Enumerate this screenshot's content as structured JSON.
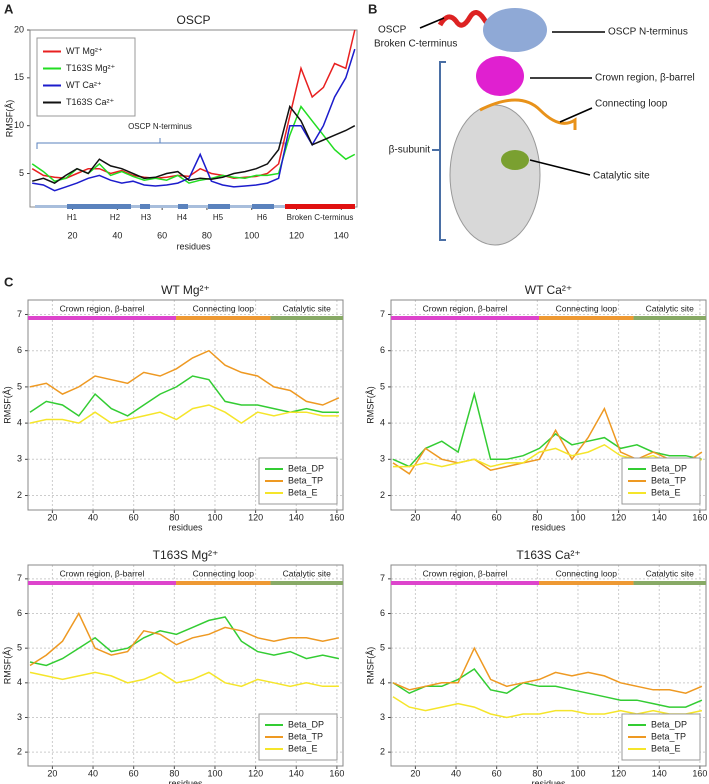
{
  "panel_labels": [
    "A",
    "B",
    "C"
  ],
  "diagram": {
    "broken_c_terminus": [
      "OSCP",
      "Broken C-terminus"
    ],
    "n_terminus": "OSCP N-terminus",
    "crown": "Crown region, β-barrel",
    "loop": "Connecting loop",
    "catalytic": "Catalytic site",
    "beta_subunit": "β-subunit"
  },
  "chart_data": [
    {
      "type": "line",
      "title": "OSCP",
      "x_label": "residues",
      "y_label": "RMSF(Å)",
      "grid": false,
      "legend": "top-left",
      "annotations": {
        "bracket": "OSCP N-terminus",
        "helices": [
          "H1",
          "H2",
          "H3",
          "H4",
          "H5",
          "H6"
        ],
        "tail": "Broken C-terminus"
      },
      "x": [
        2,
        7,
        12,
        17,
        22,
        27,
        32,
        37,
        42,
        47,
        52,
        57,
        62,
        67,
        72,
        77,
        82,
        87,
        92,
        97,
        102,
        107,
        112,
        117,
        122,
        127,
        132,
        137,
        142,
        146
      ],
      "xlim": [
        1,
        147
      ],
      "xticks": [
        20,
        40,
        60,
        80,
        100,
        120,
        140
      ],
      "ylim": [
        1.5,
        20
      ],
      "yticks": [
        5,
        10,
        15,
        20
      ],
      "series": [
        {
          "name": "WT Mg²⁺",
          "color": "#e82020",
          "values": [
            5.5,
            4.8,
            4.6,
            4.5,
            5,
            5.5,
            5.5,
            5,
            5.3,
            4.8,
            4.6,
            4.5,
            4.6,
            4.8,
            4.7,
            5.5,
            5,
            4.8,
            4.5,
            4.6,
            4.7,
            5,
            6,
            11,
            16,
            13,
            14,
            16.5,
            16,
            20
          ]
        },
        {
          "name": "T163S Mg²⁺",
          "color": "#22dd22",
          "values": [
            6,
            5.2,
            4.2,
            4.5,
            5.5,
            5,
            6,
            4.8,
            5.2,
            4.7,
            4.3,
            4.5,
            4.3,
            4.8,
            4,
            4.3,
            4.5,
            4.8,
            4.6,
            4.5,
            4.8,
            4.8,
            5,
            9,
            12,
            10.5,
            9,
            7.5,
            6.5,
            7
          ]
        },
        {
          "name": "WT Ca²⁺",
          "color": "#1c1ccc",
          "values": [
            4,
            3.8,
            3.2,
            3.6,
            4,
            4.5,
            4.8,
            4.3,
            4,
            4.2,
            3.8,
            3.7,
            3.8,
            4,
            4.5,
            7,
            4.2,
            3.8,
            3.6,
            3.7,
            3.8,
            4,
            4.5,
            10,
            10,
            8,
            10,
            13,
            15,
            18
          ]
        },
        {
          "name": "T163S Ca²⁺",
          "color": "#111111",
          "values": [
            4.2,
            4.5,
            4,
            4.8,
            5.5,
            5,
            6.5,
            5.8,
            5.5,
            5,
            4.5,
            4.6,
            5,
            5.2,
            4.3,
            4.5,
            4.4,
            4.6,
            5,
            5.2,
            5.5,
            6,
            7.5,
            12,
            10.5,
            8,
            8.5,
            9,
            9.5,
            10
          ]
        }
      ]
    },
    {
      "type": "line",
      "title": "WT Mg²⁺",
      "x_label": "residues",
      "y_label": "RMSF(Å)",
      "grid": true,
      "legend": "bottom-right",
      "annotations": [
        "Crown region, β-barrel",
        "Connecting loop",
        "Catalytic site"
      ],
      "x": [
        9,
        17,
        25,
        33,
        41,
        49,
        57,
        65,
        73,
        81,
        89,
        97,
        105,
        113,
        121,
        129,
        137,
        145,
        153,
        161
      ],
      "xlim": [
        8,
        163
      ],
      "xticks": [
        20,
        40,
        60,
        80,
        100,
        120,
        140,
        160
      ],
      "ylim": [
        1.6,
        7.4
      ],
      "yticks": [
        2,
        3,
        4,
        5,
        6,
        7
      ],
      "series": [
        {
          "name": "Beta_DP",
          "color": "#33cc33",
          "values": [
            4.3,
            4.6,
            4.5,
            4.2,
            4.8,
            4.4,
            4.2,
            4.5,
            4.8,
            5,
            5.3,
            5.2,
            4.6,
            4.5,
            4.5,
            4.4,
            4.3,
            4.4,
            4.3,
            4.3
          ]
        },
        {
          "name": "Beta_TP",
          "color": "#ee9922",
          "values": [
            5,
            5.1,
            4.8,
            5,
            5.3,
            5.2,
            5.1,
            5.4,
            5.3,
            5.5,
            5.8,
            6,
            5.6,
            5.4,
            5.3,
            5,
            4.9,
            4.6,
            4.5,
            4.7
          ]
        },
        {
          "name": "Beta_E",
          "color": "#f5e52a",
          "values": [
            4,
            4.1,
            4.1,
            4,
            4.3,
            4,
            4.1,
            4.2,
            4.3,
            4.1,
            4.4,
            4.5,
            4.3,
            4,
            4.3,
            4.2,
            4.3,
            4.3,
            4.2,
            4.2
          ]
        }
      ]
    },
    {
      "type": "line",
      "title": "WT Ca²⁺",
      "x_label": "residues",
      "y_label": "RMSF(Å)",
      "grid": true,
      "legend": "bottom-right",
      "annotations": [
        "Crown region, β-barrel",
        "Connecting loop",
        "Catalytic site"
      ],
      "x": [
        9,
        17,
        25,
        33,
        41,
        49,
        57,
        65,
        73,
        81,
        89,
        97,
        105,
        113,
        121,
        129,
        137,
        145,
        153,
        161
      ],
      "xlim": [
        8,
        163
      ],
      "xticks": [
        20,
        40,
        60,
        80,
        100,
        120,
        140,
        160
      ],
      "ylim": [
        1.6,
        7.4
      ],
      "yticks": [
        2,
        3,
        4,
        5,
        6,
        7
      ],
      "series": [
        {
          "name": "Beta_DP",
          "color": "#33cc33",
          "values": [
            3,
            2.8,
            3.3,
            3.5,
            3.2,
            4.8,
            3,
            3,
            3.1,
            3.3,
            3.7,
            3.4,
            3.5,
            3.6,
            3.3,
            3.4,
            3.2,
            3.1,
            3.1,
            3
          ]
        },
        {
          "name": "Beta_TP",
          "color": "#ee9922",
          "values": [
            2.9,
            2.6,
            3.3,
            3,
            2.9,
            3,
            2.7,
            2.8,
            2.9,
            3,
            3.8,
            3,
            3.6,
            4.4,
            3.2,
            3,
            3.2,
            3,
            2.9,
            3.2
          ]
        },
        {
          "name": "Beta_E",
          "color": "#f5e52a",
          "values": [
            2.8,
            2.8,
            2.9,
            2.8,
            2.9,
            3,
            2.8,
            2.9,
            2.9,
            3.2,
            3.3,
            3.1,
            3.2,
            3.4,
            3.1,
            3,
            3.1,
            2.9,
            2.8,
            3
          ]
        }
      ]
    },
    {
      "type": "line",
      "title": "T163S Mg²⁺",
      "x_label": "residues",
      "y_label": "RMSF(Å)",
      "grid": true,
      "legend": "bottom-right",
      "annotations": [
        "Crown region, β-barrel",
        "Connecting loop",
        "Catalytic site"
      ],
      "x": [
        9,
        17,
        25,
        33,
        41,
        49,
        57,
        65,
        73,
        81,
        89,
        97,
        105,
        113,
        121,
        129,
        137,
        145,
        153,
        161
      ],
      "xlim": [
        8,
        163
      ],
      "xticks": [
        20,
        40,
        60,
        80,
        100,
        120,
        140,
        160
      ],
      "ylim": [
        1.6,
        7.4
      ],
      "yticks": [
        2,
        3,
        4,
        5,
        6,
        7
      ],
      "series": [
        {
          "name": "Beta_DP",
          "color": "#33cc33",
          "values": [
            4.6,
            4.5,
            4.7,
            5,
            5.3,
            4.9,
            5,
            5.3,
            5.5,
            5.4,
            5.6,
            5.8,
            5.9,
            5.2,
            4.9,
            4.8,
            4.9,
            4.7,
            4.8,
            4.7
          ]
        },
        {
          "name": "Beta_TP",
          "color": "#ee9922",
          "values": [
            4.5,
            4.8,
            5.2,
            6,
            5,
            4.8,
            4.9,
            5.5,
            5.4,
            5.1,
            5.3,
            5.4,
            5.6,
            5.5,
            5.3,
            5.2,
            5.3,
            5.3,
            5.2,
            5.3
          ]
        },
        {
          "name": "Beta_E",
          "color": "#f5e52a",
          "values": [
            4.3,
            4.2,
            4.1,
            4.2,
            4.3,
            4.2,
            4,
            4.1,
            4.3,
            4,
            4.1,
            4.3,
            4,
            3.9,
            4.1,
            4,
            3.9,
            4,
            3.9,
            3.9
          ]
        }
      ]
    },
    {
      "type": "line",
      "title": "T163S Ca²⁺",
      "x_label": "residues",
      "y_label": "RMSF(Å)",
      "grid": true,
      "legend": "bottom-right",
      "annotations": [
        "Crown region, β-barrel",
        "Connecting loop",
        "Catalytic site"
      ],
      "x": [
        9,
        17,
        25,
        33,
        41,
        49,
        57,
        65,
        73,
        81,
        89,
        97,
        105,
        113,
        121,
        129,
        137,
        145,
        153,
        161
      ],
      "xlim": [
        8,
        163
      ],
      "xticks": [
        20,
        40,
        60,
        80,
        100,
        120,
        140,
        160
      ],
      "ylim": [
        1.6,
        7.4
      ],
      "yticks": [
        2,
        3,
        4,
        5,
        6,
        7
      ],
      "series": [
        {
          "name": "Beta_DP",
          "color": "#33cc33",
          "values": [
            4,
            3.7,
            3.9,
            3.9,
            4.1,
            4.4,
            3.8,
            3.7,
            4,
            3.9,
            3.9,
            3.8,
            3.7,
            3.6,
            3.5,
            3.5,
            3.4,
            3.3,
            3.3,
            3.5
          ]
        },
        {
          "name": "Beta_TP",
          "color": "#ee9922",
          "values": [
            4,
            3.8,
            3.9,
            4,
            4,
            5,
            4.1,
            3.9,
            4,
            4.1,
            4.3,
            4.2,
            4.3,
            4.2,
            4,
            3.9,
            3.8,
            3.8,
            3.7,
            3.9
          ]
        },
        {
          "name": "Beta_E",
          "color": "#f5e52a",
          "values": [
            3.6,
            3.3,
            3.2,
            3.3,
            3.4,
            3.3,
            3.1,
            3,
            3.1,
            3.1,
            3.2,
            3.2,
            3.1,
            3.1,
            3.2,
            3.1,
            3.2,
            3.1,
            3.1,
            3.2
          ]
        }
      ]
    }
  ]
}
